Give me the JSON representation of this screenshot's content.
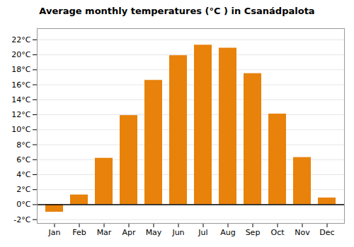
{
  "chart_data": {
    "type": "bar",
    "title": "Average monthly temperatures (°C ) in Csanádpalota",
    "categories": [
      "Jan",
      "Feb",
      "Mar",
      "Apr",
      "May",
      "Jun",
      "Jul",
      "Aug",
      "Sep",
      "Oct",
      "Nov",
      "Dec"
    ],
    "values": [
      -1.0,
      1.3,
      6.2,
      11.9,
      16.6,
      19.9,
      21.3,
      20.9,
      17.5,
      12.1,
      6.3,
      0.9
    ],
    "color": "#E8820A",
    "ylim": [
      -2.5,
      23.5
    ],
    "yticks": [
      {
        "value": -2,
        "label": "-2°C"
      },
      {
        "value": 0,
        "label": "0°C"
      },
      {
        "value": 2,
        "label": "2°C"
      },
      {
        "value": 4,
        "label": "4°C"
      },
      {
        "value": 6,
        "label": "6°C"
      },
      {
        "value": 8,
        "label": "8°C"
      },
      {
        "value": 10,
        "label": "10°C"
      },
      {
        "value": 12,
        "label": "12°C"
      },
      {
        "value": 14,
        "label": "14°C"
      },
      {
        "value": 16,
        "label": "16°C"
      },
      {
        "value": 18,
        "label": "18°C"
      },
      {
        "value": 20,
        "label": "20°C"
      },
      {
        "value": 22,
        "label": "22°C"
      }
    ],
    "grid": true
  }
}
